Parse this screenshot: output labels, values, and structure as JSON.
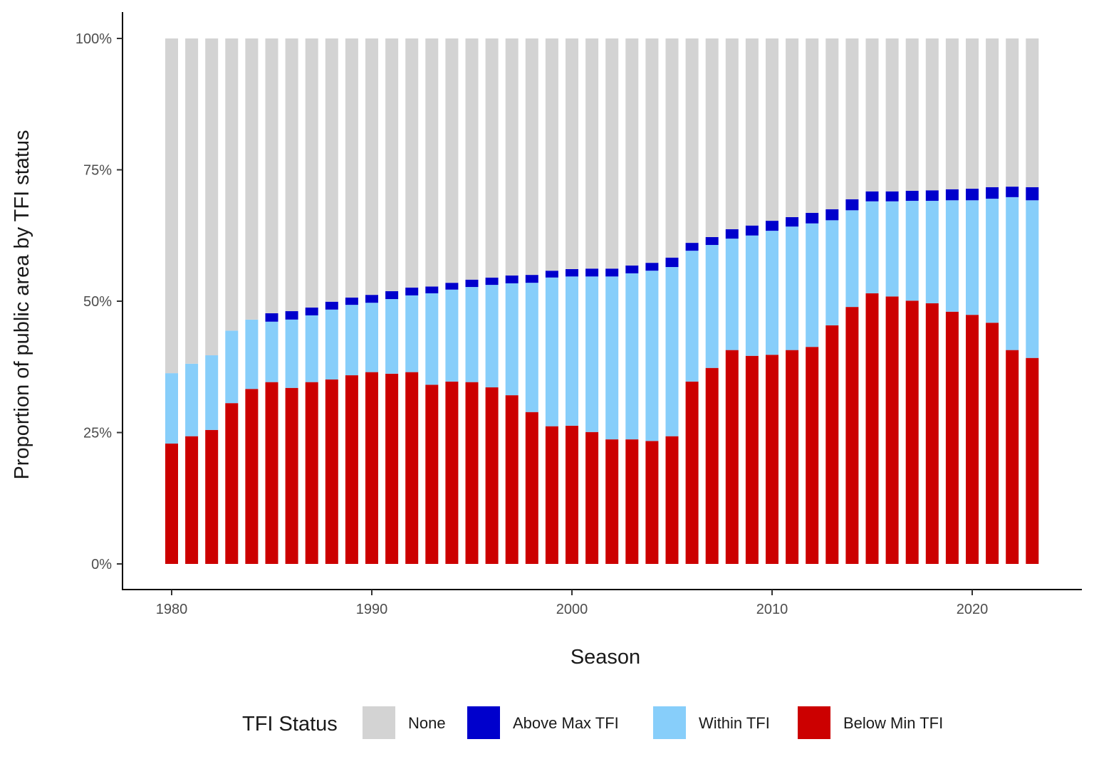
{
  "chart_data": {
    "type": "bar",
    "stacked": true,
    "xlabel": "Season",
    "ylabel": "Proportion of public area by TFI status",
    "ylim": [
      0,
      100
    ],
    "y_ticks": [
      "0%",
      "25%",
      "50%",
      "75%",
      "100%"
    ],
    "x_ticks": [
      "1980",
      "1990",
      "2000",
      "2010",
      "2020"
    ],
    "grid": false,
    "legend": {
      "title": "TFI Status",
      "placement": "bottom"
    },
    "categories": [
      1980,
      1981,
      1982,
      1983,
      1984,
      1985,
      1986,
      1987,
      1988,
      1989,
      1990,
      1991,
      1992,
      1993,
      1994,
      1995,
      1996,
      1997,
      1998,
      1999,
      2000,
      2001,
      2002,
      2003,
      2004,
      2005,
      2006,
      2007,
      2008,
      2009,
      2010,
      2011,
      2012,
      2013,
      2014,
      2015,
      2016,
      2017,
      2018,
      2019,
      2020,
      2021,
      2022,
      2023
    ],
    "series": [
      {
        "name": "Below Min TFI",
        "color": "#CC0000",
        "values": [
          22.9,
          24.3,
          25.5,
          30.6,
          33.3,
          34.6,
          33.5,
          34.6,
          35.1,
          35.9,
          36.5,
          36.2,
          36.5,
          34.1,
          34.7,
          34.6,
          33.6,
          32.1,
          28.9,
          26.2,
          26.3,
          25.1,
          23.7,
          23.7,
          23.4,
          24.3,
          34.7,
          37.3,
          40.7,
          39.6,
          39.8,
          40.7,
          41.3,
          45.4,
          48.9,
          51.5,
          50.9,
          50.1,
          49.6,
          48.0,
          47.4,
          45.9,
          40.7,
          39.2
        ]
      },
      {
        "name": "Within TFI",
        "color": "#87CEFA",
        "values": [
          13.4,
          13.8,
          14.2,
          13.8,
          13.2,
          11.5,
          13.0,
          12.7,
          13.3,
          13.4,
          13.2,
          14.2,
          14.6,
          17.4,
          17.5,
          18.1,
          19.5,
          21.3,
          24.6,
          28.3,
          28.4,
          29.6,
          31.0,
          31.6,
          32.4,
          32.2,
          24.9,
          23.4,
          21.2,
          22.9,
          23.6,
          23.5,
          23.5,
          20.0,
          18.4,
          17.5,
          18.1,
          19.0,
          19.5,
          21.2,
          21.8,
          23.6,
          29.1,
          30.0
        ]
      },
      {
        "name": "Above Max TFI",
        "color": "#0000CC",
        "values": [
          0,
          0,
          0,
          0,
          0,
          1.6,
          1.6,
          1.5,
          1.5,
          1.4,
          1.5,
          1.5,
          1.5,
          1.3,
          1.3,
          1.4,
          1.4,
          1.5,
          1.5,
          1.3,
          1.4,
          1.5,
          1.5,
          1.5,
          1.5,
          1.8,
          1.5,
          1.5,
          1.8,
          1.9,
          1.9,
          1.8,
          2.0,
          2.1,
          2.1,
          1.9,
          1.9,
          1.9,
          2.0,
          2.1,
          2.2,
          2.2,
          2.0,
          2.5
        ]
      },
      {
        "name": "None",
        "color": "#D3D3D3",
        "values": [
          63.7,
          61.9,
          60.3,
          55.6,
          53.5,
          52.3,
          51.9,
          51.2,
          50.1,
          49.3,
          48.8,
          48.1,
          47.4,
          47.2,
          46.5,
          45.9,
          45.5,
          45.1,
          45.0,
          44.2,
          43.9,
          43.8,
          43.8,
          43.2,
          42.7,
          41.7,
          38.9,
          37.8,
          36.3,
          35.6,
          34.7,
          34.0,
          33.2,
          32.5,
          30.6,
          29.1,
          29.1,
          29.0,
          28.9,
          28.7,
          28.6,
          28.3,
          28.2,
          28.3
        ]
      }
    ],
    "legend_order": [
      "None",
      "Above Max TFI",
      "Within TFI",
      "Below Min TFI"
    ]
  }
}
